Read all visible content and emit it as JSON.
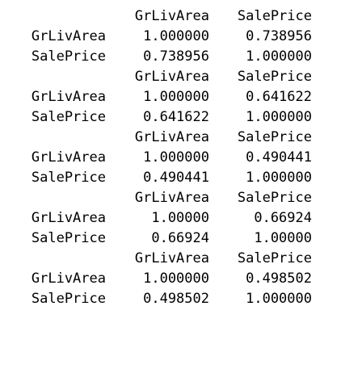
{
  "matrices": [
    {
      "header": [
        "GrLivArea",
        "SalePrice"
      ],
      "rows": [
        {
          "label": "GrLivArea",
          "values": [
            "1.000000",
            "0.738956"
          ]
        },
        {
          "label": "SalePrice",
          "values": [
            "0.738956",
            "1.000000"
          ]
        }
      ]
    },
    {
      "header": [
        "GrLivArea",
        "SalePrice"
      ],
      "rows": [
        {
          "label": "GrLivArea",
          "values": [
            "1.000000",
            "0.641622"
          ]
        },
        {
          "label": "SalePrice",
          "values": [
            "0.641622",
            "1.000000"
          ]
        }
      ]
    },
    {
      "header": [
        "GrLivArea",
        "SalePrice"
      ],
      "rows": [
        {
          "label": "GrLivArea",
          "values": [
            "1.000000",
            "0.490441"
          ]
        },
        {
          "label": "SalePrice",
          "values": [
            "0.490441",
            "1.000000"
          ]
        }
      ]
    },
    {
      "header": [
        "GrLivArea",
        "SalePrice"
      ],
      "rows": [
        {
          "label": "GrLivArea",
          "values": [
            "1.00000",
            "0.66924"
          ]
        },
        {
          "label": "SalePrice",
          "values": [
            "0.66924",
            "1.00000"
          ]
        }
      ]
    },
    {
      "header": [
        "GrLivArea",
        "SalePrice"
      ],
      "rows": [
        {
          "label": "GrLivArea",
          "values": [
            "1.000000",
            "0.498502"
          ]
        },
        {
          "label": "SalePrice",
          "values": [
            "0.498502",
            "1.000000"
          ]
        }
      ]
    }
  ]
}
